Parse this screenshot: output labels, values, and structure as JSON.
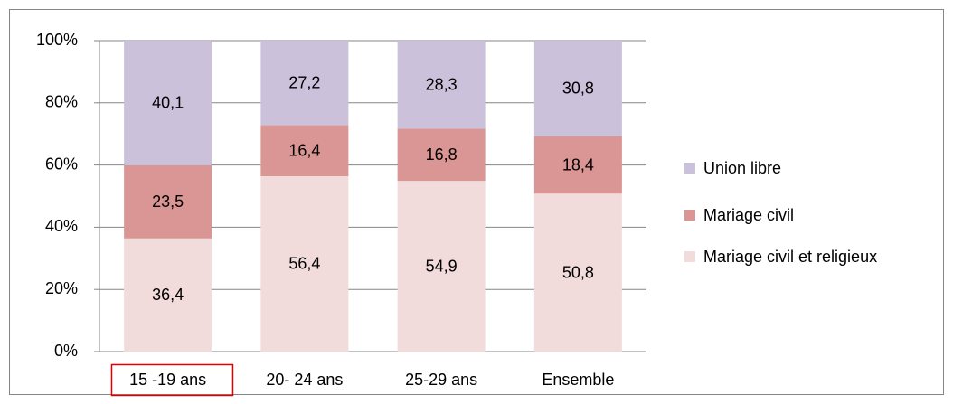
{
  "chart_data": {
    "type": "stacked_bar",
    "categories": [
      "15 -19 ans",
      "20- 24 ans",
      "25-29 ans",
      "Ensemble"
    ],
    "series": [
      {
        "name": "Mariage civil et religieux",
        "color": "#f2dcdb",
        "values": [
          36.4,
          56.4,
          54.9,
          50.8
        ],
        "value_labels": [
          "36,4",
          "56,4",
          "54,9",
          "50,8"
        ]
      },
      {
        "name": "Mariage civil",
        "color": "#d99694",
        "values": [
          23.5,
          16.4,
          16.8,
          18.4
        ],
        "value_labels": [
          "23,5",
          "16,4",
          "16,8",
          "18,4"
        ]
      },
      {
        "name": "Union libre",
        "color": "#ccc1da",
        "values": [
          40.1,
          27.2,
          28.3,
          30.8
        ],
        "value_labels": [
          "40,1",
          "27,2",
          "28,3",
          "30,8"
        ]
      }
    ],
    "ylim": [
      0,
      100
    ],
    "yticks": [
      {
        "value": 0,
        "label": "0%"
      },
      {
        "value": 20,
        "label": "20%"
      },
      {
        "value": 40,
        "label": "40%"
      },
      {
        "value": 60,
        "label": "60%"
      },
      {
        "value": 80,
        "label": "80%"
      },
      {
        "value": 100,
        "label": "100%"
      }
    ],
    "grid": true,
    "legend": "right"
  }
}
